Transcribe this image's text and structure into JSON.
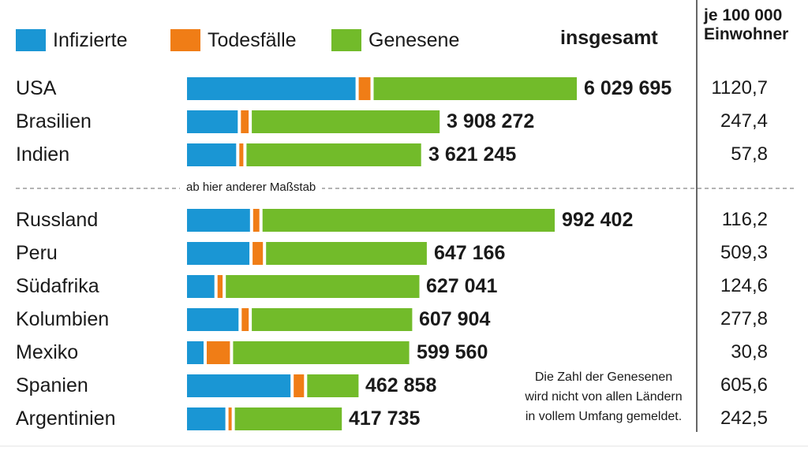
{
  "legend": {
    "infected": "Infizierte",
    "deaths": "Todesfälle",
    "recovered": "Genesene"
  },
  "headers": {
    "total": "insgesamt",
    "per100k_line1": "je 100 000",
    "per100k_line2": "Einwohner"
  },
  "scale_note": "ab hier anderer Maßstab",
  "footnote": {
    "line1": "Die Zahl der Genesenen",
    "line2": "wird nicht von allen Ländern",
    "line3": "in vollem Umfang gemeldet."
  },
  "colors": {
    "infected": "#1a96d4",
    "deaths": "#f07d16",
    "recovered": "#72bb2a"
  },
  "chart_data": {
    "type": "bar",
    "stacked": true,
    "orientation": "horizontal",
    "series_names": [
      "Infizierte",
      "Todesfälle",
      "Genesene"
    ],
    "groups": [
      {
        "scale_max": 6029695,
        "rows": [
          {
            "country": "USA",
            "total": 6029695,
            "total_label": "6 029 695",
            "per100k": "1120,7",
            "infected": 2650000,
            "deaths": 185000,
            "recovered": 3194695
          },
          {
            "country": "Brasilien",
            "total": 3908272,
            "total_label": "3 908 272",
            "per100k": "247,4",
            "infected": 805000,
            "deaths": 123000,
            "recovered": 2980272
          },
          {
            "country": "Indien",
            "total": 3621245,
            "total_label": "3 621 245",
            "per100k": "57,8",
            "infected": 781000,
            "deaths": 64500,
            "recovered": 2775745
          }
        ]
      },
      {
        "scale_max": 992402,
        "rows": [
          {
            "country": "Russland",
            "total": 992402,
            "total_label": "992 402",
            "per100k": "116,2",
            "infected": 173000,
            "deaths": 17100,
            "recovered": 802302
          },
          {
            "country": "Peru",
            "total": 647166,
            "total_label": "647 166",
            "per100k": "509,3",
            "infected": 173000,
            "deaths": 28600,
            "recovered": 445566
          },
          {
            "country": "Südafrika",
            "total": 627041,
            "total_label": "627 041",
            "per100k": "124,6",
            "infected": 76000,
            "deaths": 14100,
            "recovered": 536941
          },
          {
            "country": "Kolumbien",
            "total": 607904,
            "total_label": "607 904",
            "per100k": "277,8",
            "infected": 143000,
            "deaths": 19400,
            "recovered": 445504
          },
          {
            "country": "Mexiko",
            "total": 599560,
            "total_label": "599 560",
            "per100k": "30,8",
            "infected": 46000,
            "deaths": 64400,
            "recovered": 489160
          },
          {
            "country": "Spanien",
            "total": 462858,
            "total_label": "462 858",
            "per100k": "605,6",
            "infected": 290000,
            "deaths": 29000,
            "recovered": 143858
          },
          {
            "country": "Argentinien",
            "total": 417735,
            "total_label": "417 735",
            "per100k": "242,5",
            "infected": 108000,
            "deaths": 8700,
            "recovered": 301035
          }
        ]
      }
    ]
  }
}
